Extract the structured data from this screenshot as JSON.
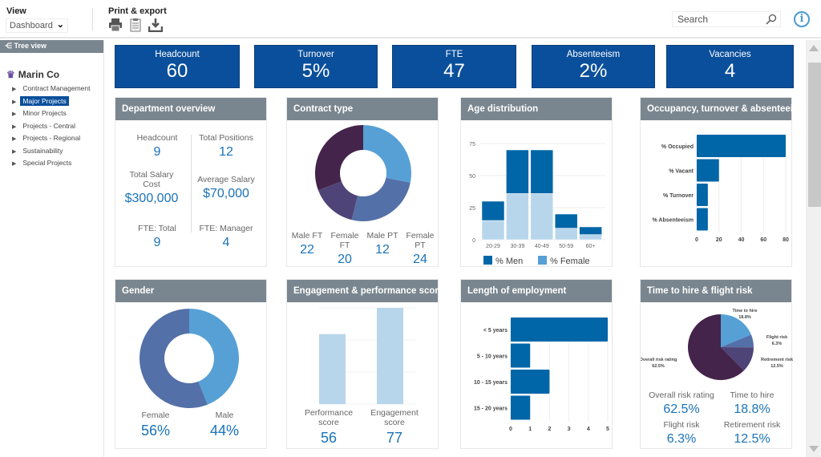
{
  "header": {
    "view_label": "View",
    "view_value": "Dashboard",
    "print_label": "Print & export",
    "search_placeholder": "Search",
    "info_icon": "i"
  },
  "sidebar": {
    "tree_view": "Tree view",
    "org": "Marin Co",
    "items": [
      {
        "label": "Contract Management"
      },
      {
        "label": "Major Projects",
        "active": true
      },
      {
        "label": "Minor Projects"
      },
      {
        "label": "Projects - Central"
      },
      {
        "label": "Projects - Regional"
      },
      {
        "label": "Sustainability"
      },
      {
        "label": "Special Projects"
      }
    ]
  },
  "kpis": [
    {
      "title": "Headcount",
      "value": "60"
    },
    {
      "title": "Turnover",
      "value": "5%"
    },
    {
      "title": "FTE",
      "value": "47"
    },
    {
      "title": "Absenteeism",
      "value": "2%"
    },
    {
      "title": "Vacancies",
      "value": "4"
    }
  ],
  "dept": {
    "title": "Department overview",
    "stats": [
      {
        "label": "Headcount",
        "value": "9"
      },
      {
        "label": "Total Positions",
        "value": "12"
      },
      {
        "label": "Total Salary Cost",
        "value": "$300,000"
      },
      {
        "label": "Average Salary",
        "value": "$70,000"
      },
      {
        "label": "FTE: Total",
        "value": "9"
      },
      {
        "label": "FTE: Manager",
        "value": "4"
      }
    ]
  },
  "contract": {
    "title": "Contract type",
    "stats": [
      {
        "label": "Male FT",
        "value": "22"
      },
      {
        "label": "Female FT",
        "value": "20"
      },
      {
        "label": "Male PT",
        "value": "12"
      },
      {
        "label": "Female PT",
        "value": "24"
      }
    ]
  },
  "age": {
    "title": "Age distribution"
  },
  "occ": {
    "title": "Occupancy, turnover & absenteeism"
  },
  "gender": {
    "title": "Gender",
    "stats": [
      {
        "label": "Female",
        "value": "56%"
      },
      {
        "label": "Male",
        "value": "44%"
      }
    ]
  },
  "eng": {
    "title": "Engagement & performance scores",
    "stats": [
      {
        "label": "Performance score",
        "value": "56"
      },
      {
        "label": "Engagement score",
        "value": "77"
      }
    ]
  },
  "len": {
    "title": "Length of employment"
  },
  "risk": {
    "title": "Time to hire & flight risk",
    "stats": [
      {
        "label": "Overall risk rating",
        "value": "62.5%"
      },
      {
        "label": "Time to hire",
        "value": "18.8%"
      },
      {
        "label": "Flight risk",
        "value": "6.3%"
      },
      {
        "label": "Retirement risk",
        "value": "12.5%"
      }
    ]
  },
  "colors": {
    "brand": "#0a4f9c",
    "header_grey": "#7a868f",
    "bar": "#0066a8",
    "light": "#b8d6eb",
    "accent_text": "#1a73b8"
  },
  "chart_data": [
    {
      "type": "pie",
      "title": "Contract type",
      "donut": true,
      "labels": [
        "Male FT",
        "Female FT",
        "Male PT",
        "Female PT"
      ],
      "values": [
        22,
        20,
        12,
        24
      ],
      "colors": [
        "#56a0d6",
        "#5470a8",
        "#4e4478",
        "#44244a"
      ]
    },
    {
      "type": "bar",
      "title": "Age distribution",
      "stacked": true,
      "categories": [
        "20-29",
        "30-39",
        "40-49",
        "50-59",
        "60+"
      ],
      "ylim": [
        0,
        75
      ],
      "yticks": [
        0,
        25,
        50,
        75
      ],
      "series": [
        {
          "name": "% Female",
          "values": [
            15,
            36,
            36,
            9,
            4
          ],
          "color": "#b8d6eb"
        },
        {
          "name": "% Men",
          "values": [
            15,
            34,
            34,
            11,
            6
          ],
          "color": "#0066a8"
        }
      ],
      "legend": [
        "% Men",
        "% Female"
      ],
      "legend_colors": [
        "#0066a8",
        "#56a0d6"
      ],
      "legend_position": "bottom"
    },
    {
      "type": "bar",
      "orientation": "horizontal",
      "title": "Occupancy, turnover & absenteeism",
      "categories": [
        "% Occupied",
        "% Vacant",
        "% Turnover",
        "% Absenteeism"
      ],
      "values": [
        80,
        20,
        10,
        10
      ],
      "xlim": [
        0,
        80
      ],
      "xticks": [
        0,
        20,
        40,
        60,
        80
      ]
    },
    {
      "type": "pie",
      "title": "Gender",
      "donut": true,
      "labels": [
        "Male",
        "Female"
      ],
      "values": [
        44,
        56
      ],
      "colors": [
        "#56a0d6",
        "#5470a8"
      ]
    },
    {
      "type": "bar",
      "title": "Engagement & performance scores",
      "categories": [
        "Performance score",
        "Engagement score"
      ],
      "values": [
        56,
        77
      ],
      "ylim": [
        0,
        77
      ]
    },
    {
      "type": "bar",
      "orientation": "horizontal",
      "title": "Length of employment",
      "categories": [
        "< 5 years",
        "5 - 10 years",
        "10 - 15 years",
        "15 - 20 years"
      ],
      "values": [
        5,
        1,
        2,
        1
      ],
      "xlim": [
        0,
        5
      ],
      "xticks": [
        0,
        1,
        2,
        3,
        4,
        5
      ]
    },
    {
      "type": "pie",
      "title": "Time to hire & flight risk",
      "labels": [
        "Time to hire",
        "Flight risk",
        "Retirement risk",
        "Overall risk rating"
      ],
      "values": [
        18.8,
        6.3,
        12.5,
        62.5
      ],
      "data_labels": [
        "18.8%",
        "6.3%",
        "12.5%",
        "62.5%"
      ],
      "colors": [
        "#56a0d6",
        "#5470a8",
        "#4e4478",
        "#44244a"
      ]
    }
  ]
}
